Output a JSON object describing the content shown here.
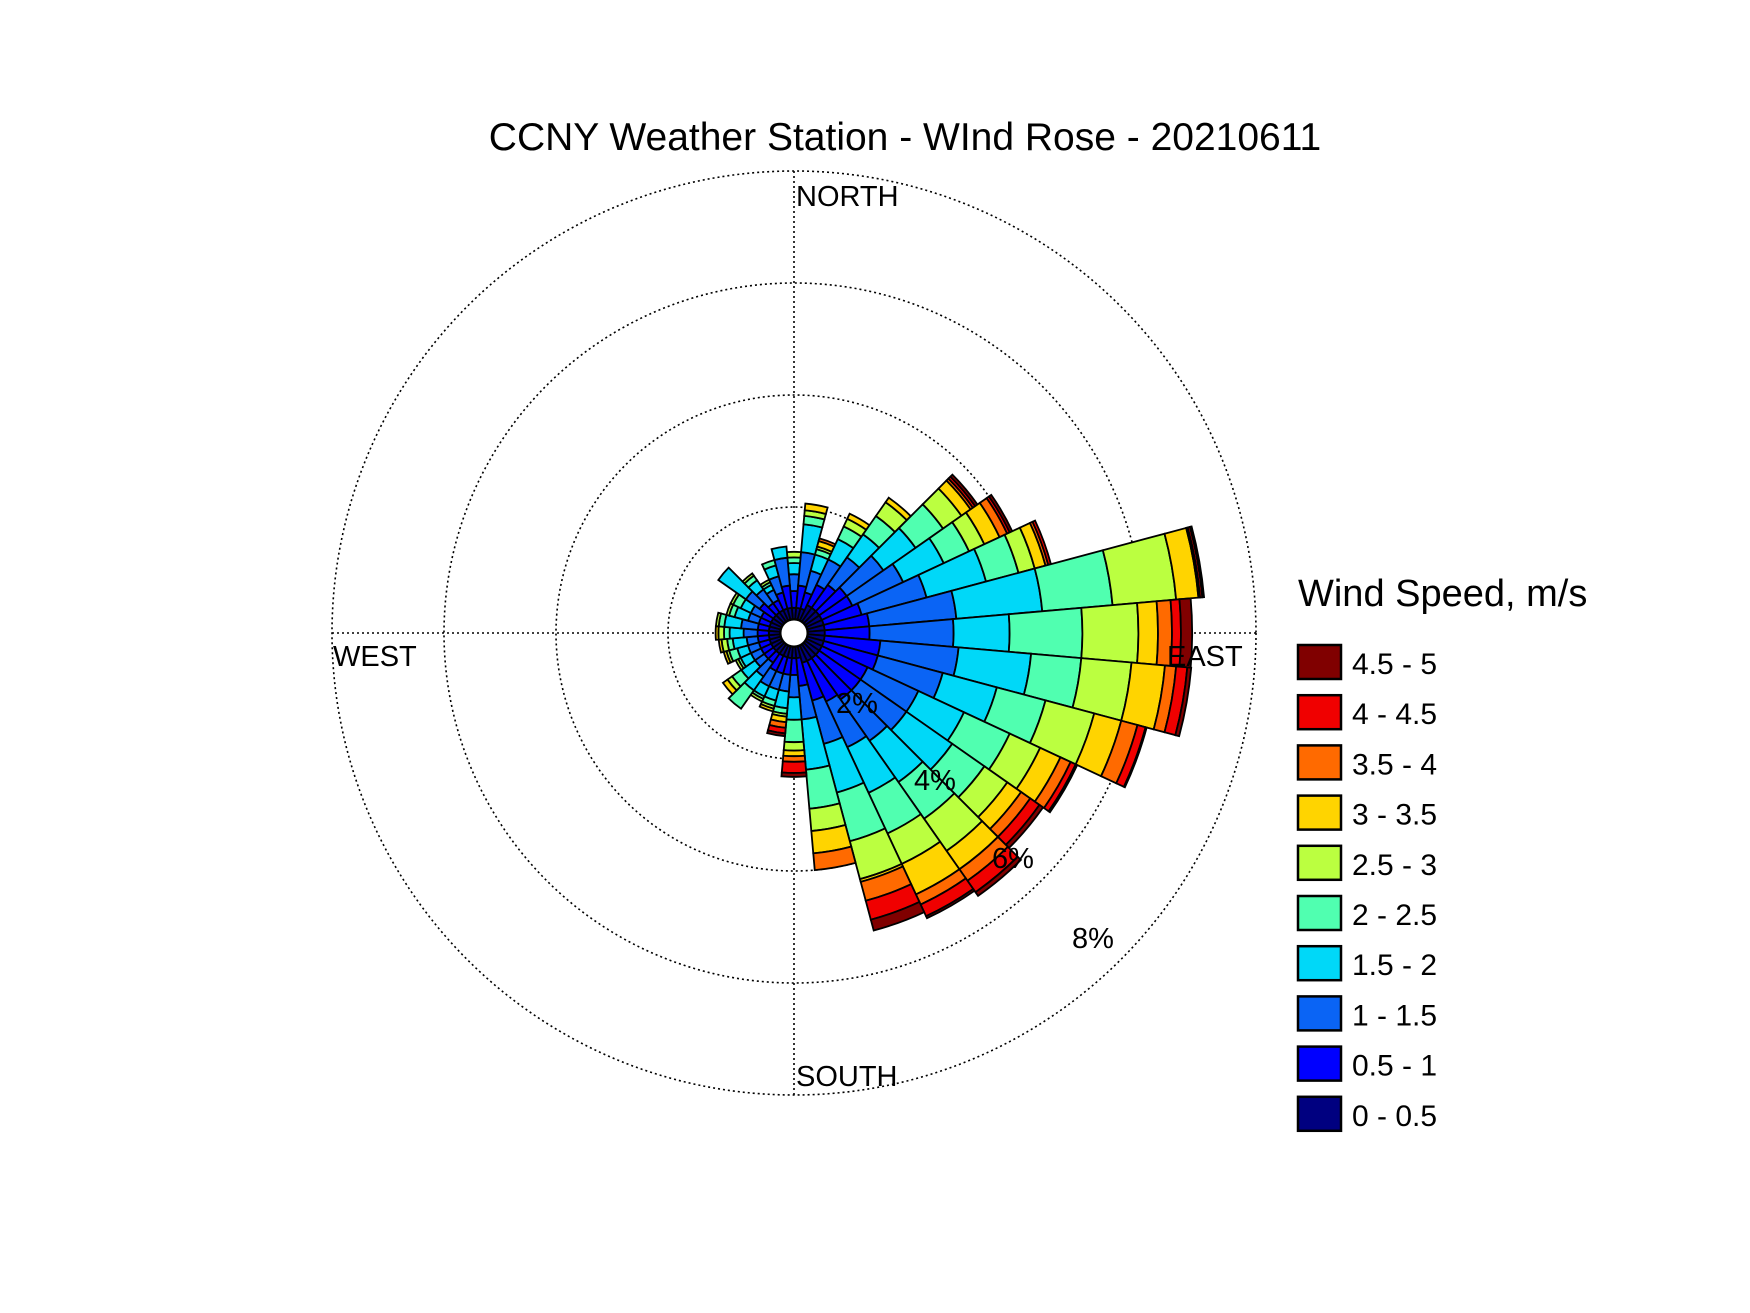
{
  "chart_data": {
    "type": "wind-rose",
    "title": "CCNY Weather Station - WInd Rose - 20210611",
    "direction_labels": {
      "north": "NORTH",
      "south": "SOUTH",
      "west": "WEST",
      "east": "EAST"
    },
    "radial_ticks": [
      "2%",
      "4%",
      "6%",
      "8%"
    ],
    "radial_tick_values": [
      2,
      4,
      6,
      8
    ],
    "radial_max": 8,
    "grid": true,
    "legend_position": "right",
    "legend_title": "Wind Speed, m/s",
    "speed_bins": [
      {
        "label": "0 - 0.5",
        "color": "#000080"
      },
      {
        "label": "0.5 - 1",
        "color": "#0000ff"
      },
      {
        "label": "1 - 1.5",
        "color": "#0a64f5"
      },
      {
        "label": "1.5 - 2",
        "color": "#00d8f8"
      },
      {
        "label": "2 - 2.5",
        "color": "#50ffb0"
      },
      {
        "label": "2.5 - 3",
        "color": "#bbff40"
      },
      {
        "label": "3 - 3.5",
        "color": "#ffd400"
      },
      {
        "label": "3.5 - 4",
        "color": "#ff6a00"
      },
      {
        "label": "4 - 4.5",
        "color": "#f00000"
      },
      {
        "label": "4.5 - 5",
        "color": "#800000"
      }
    ],
    "sector_width_deg": 10,
    "value_note_units": "cumulative frequency %, per direction, at upper edge of each speed bin",
    "directions": [
      {
        "dir": 0,
        "cumulative_percent": [
          0.2,
          0.5,
          0.8,
          1.0,
          1.1,
          1.2,
          1.2,
          1.2,
          1.2,
          1.2
        ]
      },
      {
        "dir": 10,
        "cumulative_percent": [
          0.2,
          0.6,
          1.2,
          1.7,
          1.85,
          1.95,
          2.07,
          2.07,
          2.07,
          2.07
        ]
      },
      {
        "dir": 20,
        "cumulative_percent": [
          0.2,
          0.5,
          0.9,
          1.2,
          1.3,
          1.35,
          1.45,
          1.5,
          1.5,
          1.5
        ]
      },
      {
        "dir": 30,
        "cumulative_percent": [
          0.3,
          0.7,
          1.2,
          1.6,
          1.85,
          2.0,
          2.1,
          2.1,
          2.1,
          2.1
        ]
      },
      {
        "dir": 40,
        "cumulative_percent": [
          0.3,
          0.8,
          1.4,
          1.9,
          2.3,
          2.6,
          2.7,
          2.7,
          2.7,
          2.7
        ]
      },
      {
        "dir": 50,
        "cumulative_percent": [
          0.3,
          0.9,
          1.7,
          2.4,
          3.0,
          3.4,
          3.6,
          3.65,
          3.7,
          3.75
        ]
      },
      {
        "dir": 60,
        "cumulative_percent": [
          0.3,
          0.9,
          1.9,
          2.7,
          3.2,
          3.5,
          3.8,
          3.95,
          4.0,
          4.05
        ]
      },
      {
        "dir": 70,
        "cumulative_percent": [
          0.3,
          1.0,
          2.2,
          3.3,
          3.9,
          4.2,
          4.4,
          4.45,
          4.5,
          4.5
        ]
      },
      {
        "dir": 80,
        "cumulative_percent": [
          0.3,
          1.1,
          2.66,
          4.2,
          5.46,
          6.6,
          7.0,
          7.03,
          7.07,
          7.1
        ]
      },
      {
        "dir": 90,
        "cumulative_percent": [
          0.3,
          1.1,
          2.6,
          3.6,
          4.9,
          5.9,
          6.25,
          6.5,
          6.66,
          6.86
        ]
      },
      {
        "dir": 100,
        "cumulative_percent": [
          0.3,
          1.3,
          2.7,
          4.0,
          4.9,
          5.8,
          6.4,
          6.6,
          6.8,
          6.87
        ]
      },
      {
        "dir": 110,
        "cumulative_percent": [
          0.3,
          1.3,
          2.5,
          3.5,
          4.4,
          5.3,
          5.8,
          6.1,
          6.25,
          6.27
        ]
      },
      {
        "dir": 120,
        "cumulative_percent": [
          0.3,
          1.2,
          2.2,
          3.1,
          4.0,
          4.6,
          5.0,
          5.2,
          5.3,
          5.33
        ]
      },
      {
        "dir": 130,
        "cumulative_percent": [
          0.3,
          1.2,
          2.2,
          3.2,
          3.9,
          4.4,
          4.7,
          4.9,
          5.1,
          5.18
        ]
      },
      {
        "dir": 140,
        "cumulative_percent": [
          0.3,
          1.2,
          2.1,
          3.0,
          3.8,
          4.5,
          4.9,
          5.15,
          5.4,
          5.48
        ]
      },
      {
        "dir": 150,
        "cumulative_percent": [
          0.3,
          1.1,
          2.0,
          2.9,
          3.7,
          4.3,
          4.9,
          5.1,
          5.33,
          5.37
        ]
      },
      {
        "dir": 160,
        "cumulative_percent": [
          0.3,
          1.0,
          1.8,
          2.7,
          3.6,
          4.3,
          4.35,
          4.7,
          5.05,
          5.25
        ]
      },
      {
        "dir": 170,
        "cumulative_percent": [
          0.2,
          0.7,
          1.3,
          2.2,
          2.9,
          3.3,
          3.7,
          4.0,
          4.0,
          4.0
        ]
      },
      {
        "dir": 180,
        "cumulative_percent": [
          0.2,
          0.5,
          0.9,
          1.3,
          1.7,
          1.85,
          1.95,
          2.05,
          2.25,
          2.32
        ]
      },
      {
        "dir": 190,
        "cumulative_percent": [
          0.2,
          0.5,
          0.8,
          1.1,
          1.2,
          1.25,
          1.35,
          1.45,
          1.55,
          1.6
        ]
      },
      {
        "dir": 200,
        "cumulative_percent": [
          0.2,
          0.5,
          0.8,
          1.0,
          1.1,
          1.15,
          1.2,
          1.2,
          1.2,
          1.2
        ]
      },
      {
        "dir": 210,
        "cumulative_percent": [
          0.2,
          0.5,
          0.8,
          1.0,
          1.05,
          1.1,
          1.1,
          1.1,
          1.1,
          1.1
        ]
      },
      {
        "dir": 220,
        "cumulative_percent": [
          0.2,
          0.4,
          0.7,
          1.0,
          1.4,
          1.4,
          1.4,
          1.4,
          1.4,
          1.4
        ]
      },
      {
        "dir": 230,
        "cumulative_percent": [
          0.2,
          0.4,
          0.6,
          0.9,
          1.1,
          1.2,
          1.3,
          1.3,
          1.3,
          1.3
        ]
      },
      {
        "dir": 240,
        "cumulative_percent": [
          0.2,
          0.4,
          0.6,
          0.8,
          0.85,
          0.9,
          0.9,
          0.9,
          0.9,
          0.9
        ]
      },
      {
        "dir": 250,
        "cumulative_percent": [
          0.2,
          0.4,
          0.6,
          0.8,
          0.95,
          1.0,
          1.05,
          1.05,
          1.05,
          1.05
        ]
      },
      {
        "dir": 260,
        "cumulative_percent": [
          0.2,
          0.4,
          0.6,
          0.85,
          0.95,
          1.05,
          1.1,
          1.1,
          1.1,
          1.1
        ]
      },
      {
        "dir": 270,
        "cumulative_percent": [
          0.2,
          0.4,
          0.65,
          0.9,
          1.0,
          1.1,
          1.15,
          1.15,
          1.15,
          1.15
        ]
      },
      {
        "dir": 280,
        "cumulative_percent": [
          0.2,
          0.4,
          0.7,
          1.0,
          1.1,
          1.15,
          1.15,
          1.15,
          1.15,
          1.15
        ]
      },
      {
        "dir": 290,
        "cumulative_percent": [
          0.2,
          0.4,
          0.6,
          0.85,
          0.95,
          1.0,
          1.0,
          1.0,
          1.0,
          1.0
        ]
      },
      {
        "dir": 300,
        "cumulative_percent": [
          0.2,
          0.4,
          0.6,
          0.8,
          0.95,
          1.0,
          1.0,
          1.0,
          1.0,
          1.0
        ]
      },
      {
        "dir": 310,
        "cumulative_percent": [
          0.2,
          0.5,
          0.8,
          1.4,
          1.4,
          1.4,
          1.4,
          1.4,
          1.4,
          1.4
        ]
      },
      {
        "dir": 320,
        "cumulative_percent": [
          0.2,
          0.4,
          0.7,
          0.9,
          1.0,
          1.05,
          1.05,
          1.05,
          1.05,
          1.05
        ]
      },
      {
        "dir": 330,
        "cumulative_percent": [
          0.2,
          0.4,
          0.6,
          0.7,
          0.75,
          0.8,
          0.8,
          0.8,
          0.8,
          0.8
        ]
      },
      {
        "dir": 340,
        "cumulative_percent": [
          0.2,
          0.5,
          0.8,
          1.0,
          1.1,
          1.1,
          1.1,
          1.1,
          1.1,
          1.1
        ]
      },
      {
        "dir": 350,
        "cumulative_percent": [
          0.2,
          0.6,
          1.1,
          1.3,
          1.3,
          1.3,
          1.3,
          1.3,
          1.3,
          1.3
        ]
      }
    ]
  }
}
